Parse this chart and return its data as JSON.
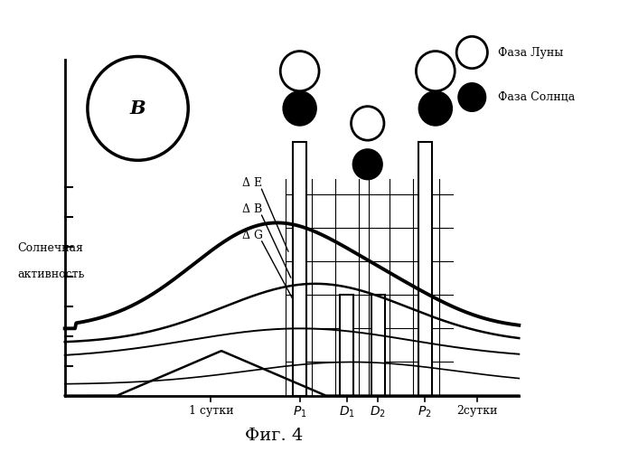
{
  "title": "Фиг. 4",
  "ylabel_line1": "Солнечная",
  "ylabel_line2": "активность",
  "xlabel_1sutki": "1 сутки",
  "xlabel_2sutki": "2сутки",
  "legend_moon": "Фаза Луны",
  "legend_sun": "Фаза Солнца",
  "label_B": "В",
  "label_dE": "Δ E",
  "label_dB": "Δ B",
  "label_dG": "Δ G",
  "bg_color": "#ffffff",
  "line_color": "#000000"
}
